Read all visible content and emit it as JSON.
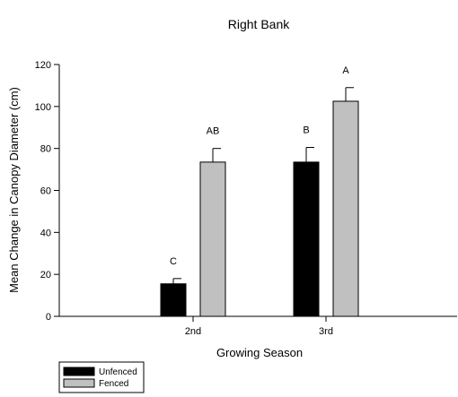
{
  "chart_data": {
    "type": "bar",
    "title": "Right Bank",
    "xlabel": "Growing Season",
    "ylabel": "Mean Change in Canopy Diameter (cm)",
    "ylim": [
      0,
      120
    ],
    "yticks": [
      0,
      20,
      40,
      60,
      80,
      100,
      120
    ],
    "categories": [
      "2nd",
      "3rd"
    ],
    "series": [
      {
        "name": "Unfenced",
        "color": "#000000",
        "values": [
          15.5,
          73.5
        ],
        "error": [
          2.5,
          7
        ],
        "labels": [
          "C",
          "B"
        ]
      },
      {
        "name": "Fenced",
        "color": "#c0c0c0",
        "values": [
          73.5,
          102.5
        ],
        "error": [
          6.5,
          6.5
        ],
        "labels": [
          "AB",
          "A"
        ]
      }
    ],
    "legend": "bottom-left",
    "grid": false
  }
}
